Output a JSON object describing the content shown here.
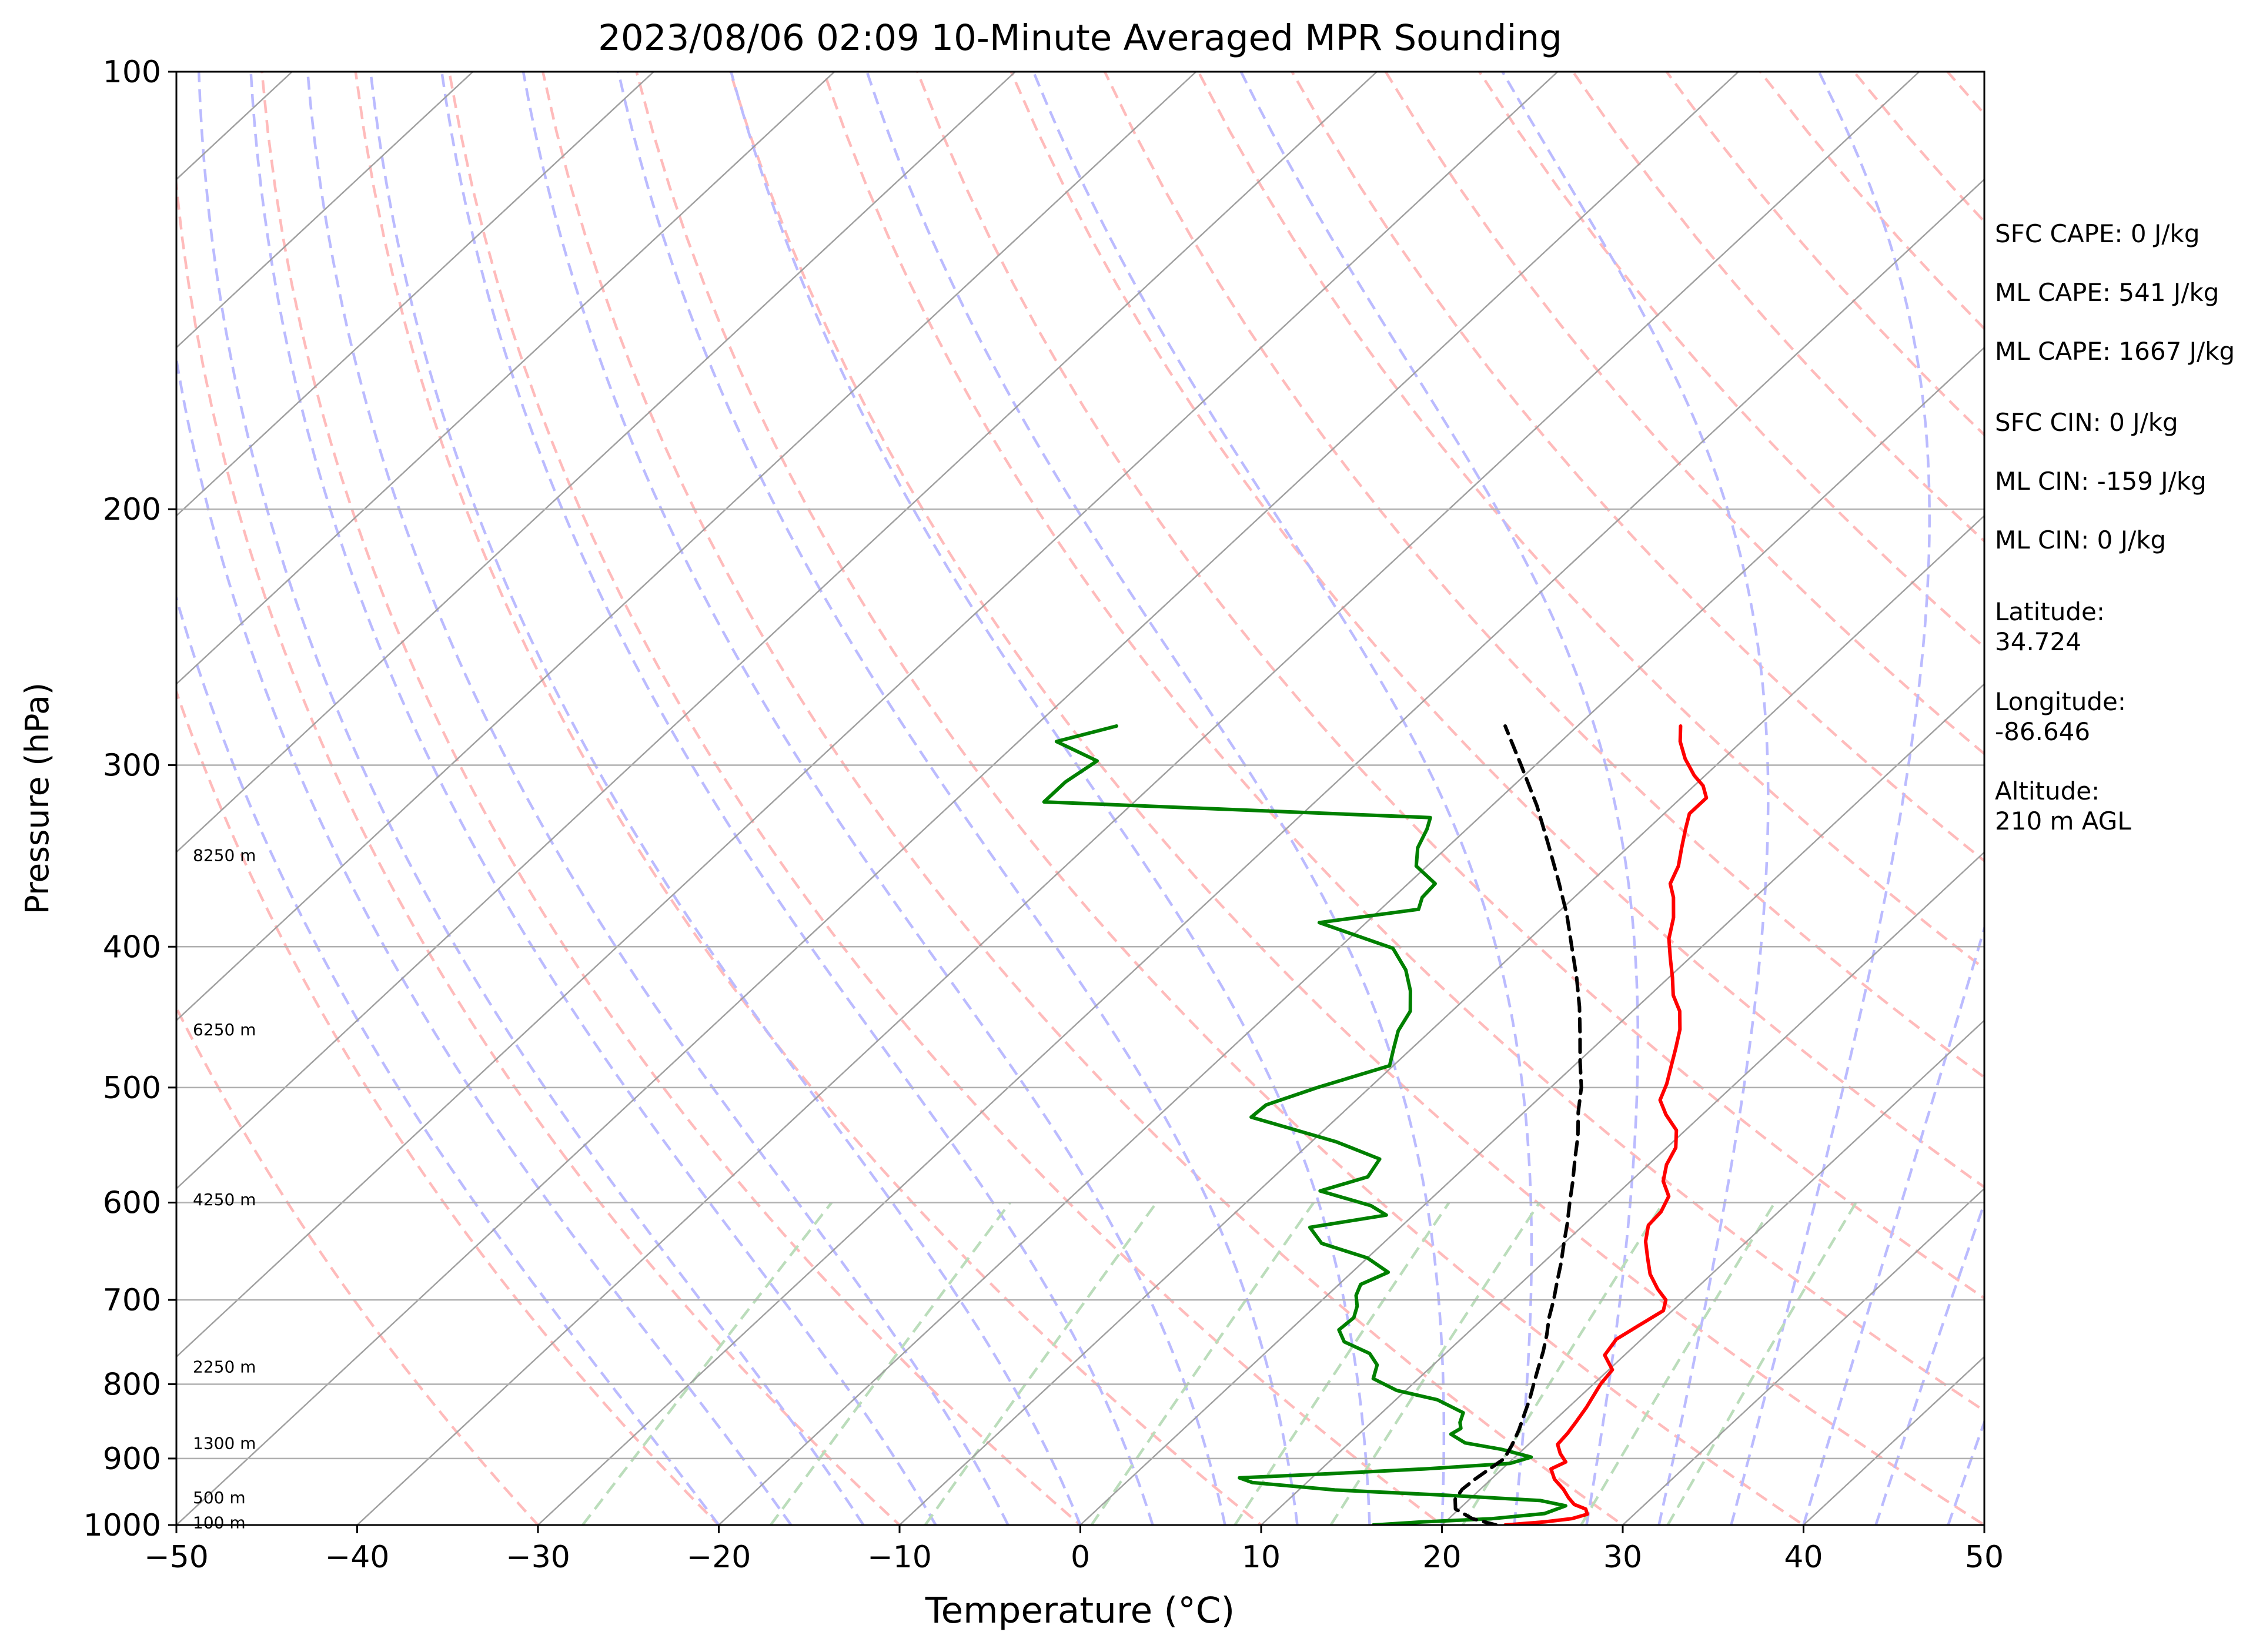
{
  "chart_data": {
    "type": "line",
    "title": "2023/08/06 02:09 10-Minute Averaged MPR Sounding",
    "xlabel": "Temperature (°C)",
    "ylabel": "Pressure (hPa)",
    "xlim": [
      -50,
      50
    ],
    "ylim": [
      1000,
      100
    ],
    "y_scale": "log",
    "skew_deg_per_decade": 86.4,
    "grid": true,
    "x_ticks": [
      -50,
      -40,
      -30,
      -20,
      -10,
      0,
      10,
      20,
      30,
      40,
      50
    ],
    "x_tick_labels": [
      "−50",
      "−40",
      "−30",
      "−20",
      "−10",
      "0",
      "10",
      "20",
      "30",
      "40",
      "50"
    ],
    "y_ticks": [
      100,
      200,
      300,
      400,
      500,
      600,
      700,
      800,
      900,
      1000
    ],
    "y_tick_labels": [
      "100",
      "200",
      "300",
      "400",
      "500",
      "600",
      "700",
      "800",
      "900",
      "1000"
    ],
    "height_labels": [
      {
        "text": "8250 m",
        "p": 346
      },
      {
        "text": "6250 m",
        "p": 456
      },
      {
        "text": "4250 m",
        "p": 597
      },
      {
        "text": "2250 m",
        "p": 778
      },
      {
        "text": "1300 m",
        "p": 878
      },
      {
        "text": "500 m",
        "p": 957
      },
      {
        "text": "100 m",
        "p": 996
      }
    ],
    "series": [
      {
        "name": "",
        "color": "#ff0000",
        "points": [
          [
            1000,
            23.5
          ],
          [
            995,
            25.5
          ],
          [
            990,
            26.8
          ],
          [
            983,
            27.4
          ],
          [
            975,
            27.0
          ],
          [
            968,
            26.1
          ],
          [
            958,
            25.4
          ],
          [
            945,
            24.6
          ],
          [
            930,
            23.5
          ],
          [
            915,
            22.7
          ],
          [
            905,
            23.1
          ],
          [
            893,
            22.3
          ],
          [
            880,
            21.6
          ],
          [
            865,
            21.5
          ],
          [
            850,
            21.3
          ],
          [
            830,
            21.0
          ],
          [
            810,
            20.6
          ],
          [
            800,
            20.4
          ],
          [
            782,
            20.2
          ],
          [
            764,
            18.9
          ],
          [
            745,
            18.6
          ],
          [
            730,
            19.0
          ],
          [
            712,
            19.5
          ],
          [
            700,
            19.0
          ],
          [
            688,
            17.9
          ],
          [
            672,
            16.6
          ],
          [
            655,
            15.5
          ],
          [
            638,
            14.4
          ],
          [
            622,
            13.6
          ],
          [
            609,
            13.5
          ],
          [
            594,
            13.0
          ],
          [
            580,
            11.8
          ],
          [
            565,
            11.0
          ],
          [
            550,
            10.5
          ],
          [
            535,
            9.5
          ],
          [
            522,
            8.0
          ],
          [
            510,
            6.8
          ],
          [
            497,
            6.2
          ],
          [
            485,
            5.5
          ],
          [
            470,
            4.6
          ],
          [
            456,
            3.7
          ],
          [
            443,
            2.6
          ],
          [
            432,
            1.3
          ],
          [
            420,
            0.2
          ],
          [
            408,
            -1.0
          ],
          [
            395,
            -2.3
          ],
          [
            382,
            -3.3
          ],
          [
            370,
            -4.5
          ],
          [
            362,
            -5.5
          ],
          [
            352,
            -6.1
          ],
          [
            342,
            -7.0
          ],
          [
            332,
            -7.9
          ],
          [
            324,
            -8.6
          ],
          [
            316,
            -8.6
          ],
          [
            310,
            -9.5
          ],
          [
            305,
            -10.6
          ],
          [
            297,
            -12.1
          ],
          [
            289,
            -13.4
          ],
          [
            282,
            -14.3
          ]
        ]
      },
      {
        "name": "",
        "color": "#008000",
        "points": [
          [
            1000,
            16.2
          ],
          [
            995,
            18.8
          ],
          [
            990,
            22.4
          ],
          [
            982,
            25.0
          ],
          [
            970,
            25.7
          ],
          [
            962,
            24.0
          ],
          [
            954,
            18.5
          ],
          [
            946,
            12.0
          ],
          [
            935,
            7.0
          ],
          [
            928,
            6.0
          ],
          [
            922,
            10.7
          ],
          [
            915,
            15.7
          ],
          [
            907,
            20.1
          ],
          [
            898,
            20.9
          ],
          [
            887,
            18.8
          ],
          [
            878,
            16.4
          ],
          [
            866,
            15.1
          ],
          [
            858,
            15.3
          ],
          [
            850,
            14.9
          ],
          [
            837,
            14.5
          ],
          [
            820,
            12.3
          ],
          [
            808,
            9.5
          ],
          [
            793,
            7.5
          ],
          [
            776,
            6.9
          ],
          [
            762,
            5.8
          ],
          [
            748,
            3.7
          ],
          [
            734,
            2.7
          ],
          [
            720,
            2.8
          ],
          [
            707,
            2.3
          ],
          [
            695,
            1.6
          ],
          [
            683,
            1.2
          ],
          [
            670,
            2.0
          ],
          [
            655,
            0.0
          ],
          [
            640,
            -3.4
          ],
          [
            624,
            -5.0
          ],
          [
            612,
            -1.5
          ],
          [
            603,
            -2.9
          ],
          [
            589,
            -6.6
          ],
          [
            576,
            -4.8
          ],
          [
            560,
            -5.2
          ],
          [
            545,
            -8.6
          ],
          [
            524,
            -14.8
          ],
          [
            514,
            -14.7
          ],
          [
            500,
            -12.9
          ],
          [
            483,
            -10.2
          ],
          [
            470,
            -11.0
          ],
          [
            457,
            -11.8
          ],
          [
            443,
            -12.3
          ],
          [
            429,
            -13.5
          ],
          [
            415,
            -15.0
          ],
          [
            401,
            -17.0
          ],
          [
            385,
            -22.6
          ],
          [
            377,
            -17.9
          ],
          [
            370,
            -18.4
          ],
          [
            362,
            -18.5
          ],
          [
            352,
            -20.6
          ],
          [
            342,
            -21.6
          ],
          [
            332,
            -22.2
          ],
          [
            326,
            -22.7
          ],
          [
            318,
            -45.0
          ],
          [
            308,
            -45.0
          ],
          [
            298,
            -44.5
          ],
          [
            289,
            -47.9
          ],
          [
            282,
            -45.5
          ]
        ]
      },
      {
        "name": "",
        "color": "#000000",
        "dashed": true,
        "points": [
          [
            1000,
            23.0
          ],
          [
            990,
            21.3
          ],
          [
            975,
            19.8
          ],
          [
            960,
            19.2
          ],
          [
            945,
            19.0
          ],
          [
            930,
            19.1
          ],
          [
            915,
            19.3
          ],
          [
            900,
            19.5
          ],
          [
            880,
            19.1
          ],
          [
            860,
            18.6
          ],
          [
            840,
            18.0
          ],
          [
            820,
            17.4
          ],
          [
            800,
            16.7
          ],
          [
            780,
            16.0
          ],
          [
            760,
            15.3
          ],
          [
            740,
            14.5
          ],
          [
            720,
            13.6
          ],
          [
            700,
            12.8
          ],
          [
            680,
            11.9
          ],
          [
            660,
            11.0
          ],
          [
            640,
            10.0
          ],
          [
            620,
            9.0
          ],
          [
            600,
            7.9
          ],
          [
            580,
            6.8
          ],
          [
            560,
            5.6
          ],
          [
            540,
            4.4
          ],
          [
            520,
            3.0
          ],
          [
            500,
            1.7
          ],
          [
            480,
            0.1
          ],
          [
            460,
            -1.5
          ],
          [
            440,
            -3.2
          ],
          [
            420,
            -5.1
          ],
          [
            400,
            -7.2
          ],
          [
            380,
            -9.4
          ],
          [
            360,
            -11.9
          ],
          [
            340,
            -14.6
          ],
          [
            320,
            -17.5
          ],
          [
            300,
            -20.8
          ],
          [
            282,
            -24.0
          ]
        ]
      }
    ]
  },
  "annotations": {
    "sfc_cape": "SFC CAPE: 0 J/kg",
    "ml_cape_1": "ML CAPE: 541 J/kg",
    "ml_cape_2": "ML CAPE: 1667 J/kg",
    "sfc_cin": "SFC CIN: 0 J/kg",
    "ml_cin_1": "ML CIN: -159 J/kg",
    "ml_cin_2": "ML CIN: 0 J/kg",
    "latitude_label": "Latitude:",
    "latitude_value": "34.724",
    "longitude_label": "Longitude:",
    "longitude_value": "-86.646",
    "altitude_label": "Altitude:",
    "altitude_value": "210 m AGL"
  },
  "colors": {
    "isobar": "#b0b0b0",
    "isotherm": "#a0a0a0",
    "dry_adiabat": "#ffbbbb",
    "moist_adiabat": "#bbbbff",
    "mixing_ratio": "#bbddbb",
    "temperature": "#ff0000",
    "dewpoint": "#008000",
    "parcel": "#000000"
  }
}
